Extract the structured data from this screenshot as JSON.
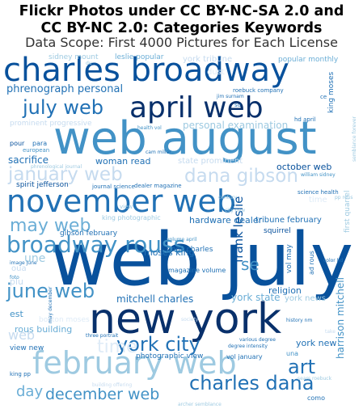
{
  "chart_data": {
    "type": "wordcloud",
    "title_lines": [
      "Flickr Photos under CC BY-NC-SA 2.0 and",
      "CC BY-NC 2.0: Categories Keywords"
    ],
    "subtitle": "Data Scope: First 4000 Pictures for Each License",
    "colormap": "Blues",
    "palette": [
      "#08306b",
      "#08519c",
      "#2171b5",
      "#4292c6",
      "#6baed6",
      "#9ecae1",
      "#c6dbef",
      "#deebf7"
    ],
    "words": [
      {
        "text": "web july",
        "weight": 100,
        "color": "#08519c"
      },
      {
        "text": "web august",
        "weight": 78,
        "color": "#4292c6"
      },
      {
        "text": "new york",
        "weight": 72,
        "color": "#08306b"
      },
      {
        "text": "charles broadway",
        "weight": 62,
        "color": "#08519c"
      },
      {
        "text": "november web",
        "weight": 60,
        "color": "#2171b5"
      },
      {
        "text": "february web",
        "weight": 56,
        "color": "#9ecae1"
      },
      {
        "text": "april web",
        "weight": 52,
        "color": "#08306b"
      },
      {
        "text": "broadway rouss",
        "weight": 44,
        "color": "#4292c6"
      },
      {
        "text": "january web",
        "weight": 38,
        "color": "#c6dbef"
      },
      {
        "text": "dana gibson",
        "weight": 36,
        "color": "#c6dbef"
      },
      {
        "text": "charles dana",
        "weight": 36,
        "color": "#2171b5"
      },
      {
        "text": "york city",
        "weight": 34,
        "color": "#2171b5"
      },
      {
        "text": "july web",
        "weight": 32,
        "color": "#2171b5"
      },
      {
        "text": "june web",
        "weight": 30,
        "color": "#4292c6"
      },
      {
        "text": "may web",
        "weight": 28,
        "color": "#6baed6"
      },
      {
        "text": "art",
        "weight": 30,
        "color": "#2171b5"
      },
      {
        "text": "time",
        "weight": 26,
        "color": "#deebf7"
      },
      {
        "text": "se",
        "weight": 24,
        "color": "#4292c6"
      },
      {
        "text": "december web",
        "weight": 24,
        "color": "#4292c6"
      },
      {
        "text": "day",
        "weight": 22,
        "color": "#6baed6"
      },
      {
        "text": "frank leslie",
        "weight": 18,
        "color": "#08519c"
      },
      {
        "text": "web",
        "weight": 20,
        "color": "#c6dbef"
      },
      {
        "text": "une",
        "weight": 18,
        "color": "#9ecae1"
      },
      {
        "text": "phrenograph personal",
        "weight": 16,
        "color": "#2171b5"
      },
      {
        "text": "personal examination",
        "weight": 14,
        "color": "#9ecae1"
      },
      {
        "text": "mitchell charles",
        "weight": 14,
        "color": "#2171b5"
      },
      {
        "text": "york state",
        "weight": 14,
        "color": "#6baed6"
      },
      {
        "text": "rous building",
        "weight": 14,
        "color": "#6baed6"
      },
      {
        "text": "moses king",
        "weight": 14,
        "color": "#2171b5"
      },
      {
        "text": "hardware dealer",
        "weight": 13,
        "color": "#2171b5"
      },
      {
        "text": "october web",
        "weight": 13,
        "color": "#08519c"
      },
      {
        "text": "sacrifice",
        "weight": 13,
        "color": "#2171b5"
      },
      {
        "text": "woman read",
        "weight": 13,
        "color": "#2171b5"
      },
      {
        "text": "york news",
        "weight": 13,
        "color": "#9ecae1"
      },
      {
        "text": "york new",
        "weight": 13,
        "color": "#2171b5"
      },
      {
        "text": "harrison mitchell",
        "weight": 13,
        "color": "#4292c6"
      },
      {
        "text": "religion",
        "weight": 12,
        "color": "#2171b5"
      },
      {
        "text": "prominent progressive",
        "weight": 11,
        "color": "#c6dbef"
      },
      {
        "text": "state prominent",
        "weight": 11,
        "color": "#c6dbef"
      },
      {
        "text": "york tribune",
        "weight": 11,
        "color": "#c6dbef"
      },
      {
        "text": "boston moses",
        "weight": 11,
        "color": "#deebf7"
      },
      {
        "text": "time",
        "weight": 11,
        "color": "#deebf7"
      },
      {
        "text": "dust",
        "weight": 11,
        "color": "#deebf7"
      },
      {
        "text": "view new",
        "weight": 11,
        "color": "#2171b5"
      },
      {
        "text": "tribune february",
        "weight": 10,
        "color": "#2171b5"
      },
      {
        "text": "photographic view",
        "weight": 10,
        "color": "#2171b5"
      },
      {
        "text": "book charles",
        "weight": 10,
        "color": "#2171b5"
      },
      {
        "text": "gibson february",
        "weight": 10,
        "color": "#2171b5"
      },
      {
        "text": "king photographic",
        "weight": 10,
        "color": "#9ecae1"
      },
      {
        "text": "spirit jefferson",
        "weight": 10,
        "color": "#08519c"
      },
      {
        "text": "leslie popular",
        "weight": 10,
        "color": "#6baed6"
      },
      {
        "text": "popular monthly",
        "weight": 10,
        "color": "#6baed6"
      },
      {
        "text": "sidney mount",
        "weight": 10,
        "color": "#9ecae1"
      },
      {
        "text": "king moses",
        "weight": 10,
        "color": "#2171b5"
      },
      {
        "text": "first quarrel",
        "weight": 10,
        "color": "#9ecae1"
      },
      {
        "text": "vol may",
        "weight": 10,
        "color": "#2171b5"
      },
      {
        "text": "ad rous",
        "weight": 9,
        "color": "#2171b5"
      },
      {
        "text": "squirrel",
        "weight": 9,
        "color": "#08519c"
      },
      {
        "text": "magazine volume",
        "weight": 9,
        "color": "#2171b5"
      },
      {
        "text": "vol january",
        "weight": 9,
        "color": "#2171b5"
      },
      {
        "text": "una",
        "weight": 9,
        "color": "#4292c6"
      },
      {
        "text": "est",
        "weight": 10,
        "color": "#4292c6"
      },
      {
        "text": "plu",
        "weight": 10,
        "color": "#c6dbef"
      },
      {
        "text": "oua",
        "weight": 10,
        "color": "#c6dbef"
      },
      {
        "text": "pour",
        "weight": 9,
        "color": "#08519c"
      },
      {
        "text": "para",
        "weight": 9,
        "color": "#2171b5"
      },
      {
        "text": "european",
        "weight": 8,
        "color": "#4292c6"
      },
      {
        "text": "dealer magazine",
        "weight": 8,
        "color": "#2171b5"
      },
      {
        "text": "journal science",
        "weight": 8,
        "color": "#2171b5"
      },
      {
        "text": "science health",
        "weight": 8,
        "color": "#2171b5"
      },
      {
        "text": "roebuck company",
        "weight": 8,
        "color": "#2171b5"
      },
      {
        "text": "hd april",
        "weight": 8,
        "color": "#2171b5"
      },
      {
        "text": "health vol",
        "weight": 7,
        "color": "#4292c6"
      },
      {
        "text": "cam millar",
        "weight": 7,
        "color": "#2171b5"
      },
      {
        "text": "phrenological journal",
        "weight": 7,
        "color": "#9ecae1"
      },
      {
        "text": "color hd",
        "weight": 7,
        "color": "#2171b5"
      },
      {
        "text": "history nm",
        "weight": 7,
        "color": "#2171b5"
      },
      {
        "text": "various degree",
        "weight": 7,
        "color": "#2171b5"
      },
      {
        "text": "degree intensity",
        "weight": 7,
        "color": "#2171b5"
      },
      {
        "text": "three portrait",
        "weight": 7,
        "color": "#2171b5"
      },
      {
        "text": "sears roebuck",
        "weight": 7,
        "color": "#9ecae1"
      },
      {
        "text": "archer semblance",
        "weight": 7,
        "color": "#9ecae1"
      },
      {
        "text": "building offering",
        "weight": 7,
        "color": "#c6dbef"
      },
      {
        "text": "semblance forever",
        "weight": 7,
        "color": "#9ecae1"
      },
      {
        "text": "king pp",
        "weight": 8,
        "color": "#2171b5"
      },
      {
        "text": "image june",
        "weight": 7,
        "color": "#2171b5"
      },
      {
        "text": "may december",
        "weight": 7,
        "color": "#2171b5"
      },
      {
        "text": "jim surnam",
        "weight": 7,
        "color": "#2171b5"
      },
      {
        "text": "century",
        "weight": 7,
        "color": "#9ecae1"
      },
      {
        "text": "city new",
        "weight": 7,
        "color": "#9ecae1"
      },
      {
        "text": "volume april",
        "weight": 7,
        "color": "#4292c6"
      },
      {
        "text": "pp rous",
        "weight": 7,
        "color": "#9ecae1"
      },
      {
        "text": "william sidney",
        "weight": 7,
        "color": "#4292c6"
      },
      {
        "text": "foto",
        "weight": 7,
        "color": "#4292c6"
      },
      {
        "text": "society",
        "weight": 7,
        "color": "#c6dbef"
      },
      {
        "text": "como",
        "weight": 8,
        "color": "#2171b5"
      },
      {
        "text": "take",
        "weight": 7,
        "color": "#c6dbef"
      },
      {
        "text": "view",
        "weight": 8,
        "color": "#9ecae1"
      },
      {
        "text": "su",
        "weight": 8,
        "color": "#2171b5"
      },
      {
        "text": "ce",
        "weight": 8,
        "color": "#2171b5"
      },
      {
        "text": "du",
        "weight": 7,
        "color": "#9ecae1"
      }
    ]
  }
}
